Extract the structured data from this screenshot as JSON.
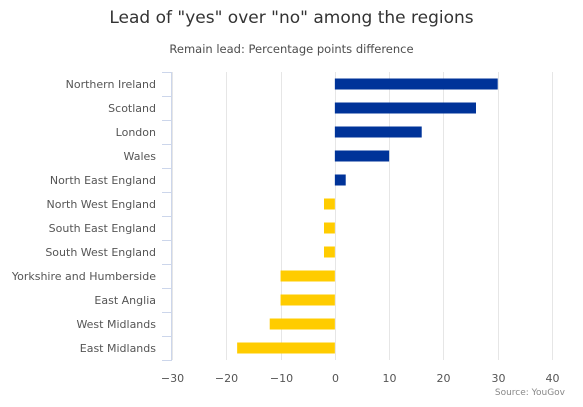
{
  "chart_data": {
    "type": "bar",
    "orientation": "horizontal",
    "title": "Lead of \"yes\" over \"no\" among the regions",
    "subtitle": "Remain lead: Percentage points difference",
    "credit": "Source: YouGov",
    "categories": [
      "Northern Ireland",
      "Scotland",
      "London",
      "Wales",
      "North East England",
      "North West England",
      "South East England",
      "South West England",
      "Yorkshire and Humberside",
      "East Anglia",
      "West Midlands",
      "East Midlands"
    ],
    "values": [
      30,
      26,
      16,
      10,
      2,
      -2,
      -2,
      -2,
      -10,
      -10,
      -12,
      -18
    ],
    "xlim": [
      -30,
      40
    ],
    "xticks": [
      -30,
      -20,
      -10,
      0,
      10,
      20,
      30,
      40
    ],
    "xticks_labels": [
      "−30",
      "−20",
      "−10",
      "0",
      "10",
      "20",
      "30",
      "40"
    ],
    "grid": true,
    "colors": {
      "positive": "#003399",
      "negative": "#ffcc00",
      "grid": "#e6e6e6",
      "axis": "#ccd6eb",
      "label": "#555555"
    }
  }
}
